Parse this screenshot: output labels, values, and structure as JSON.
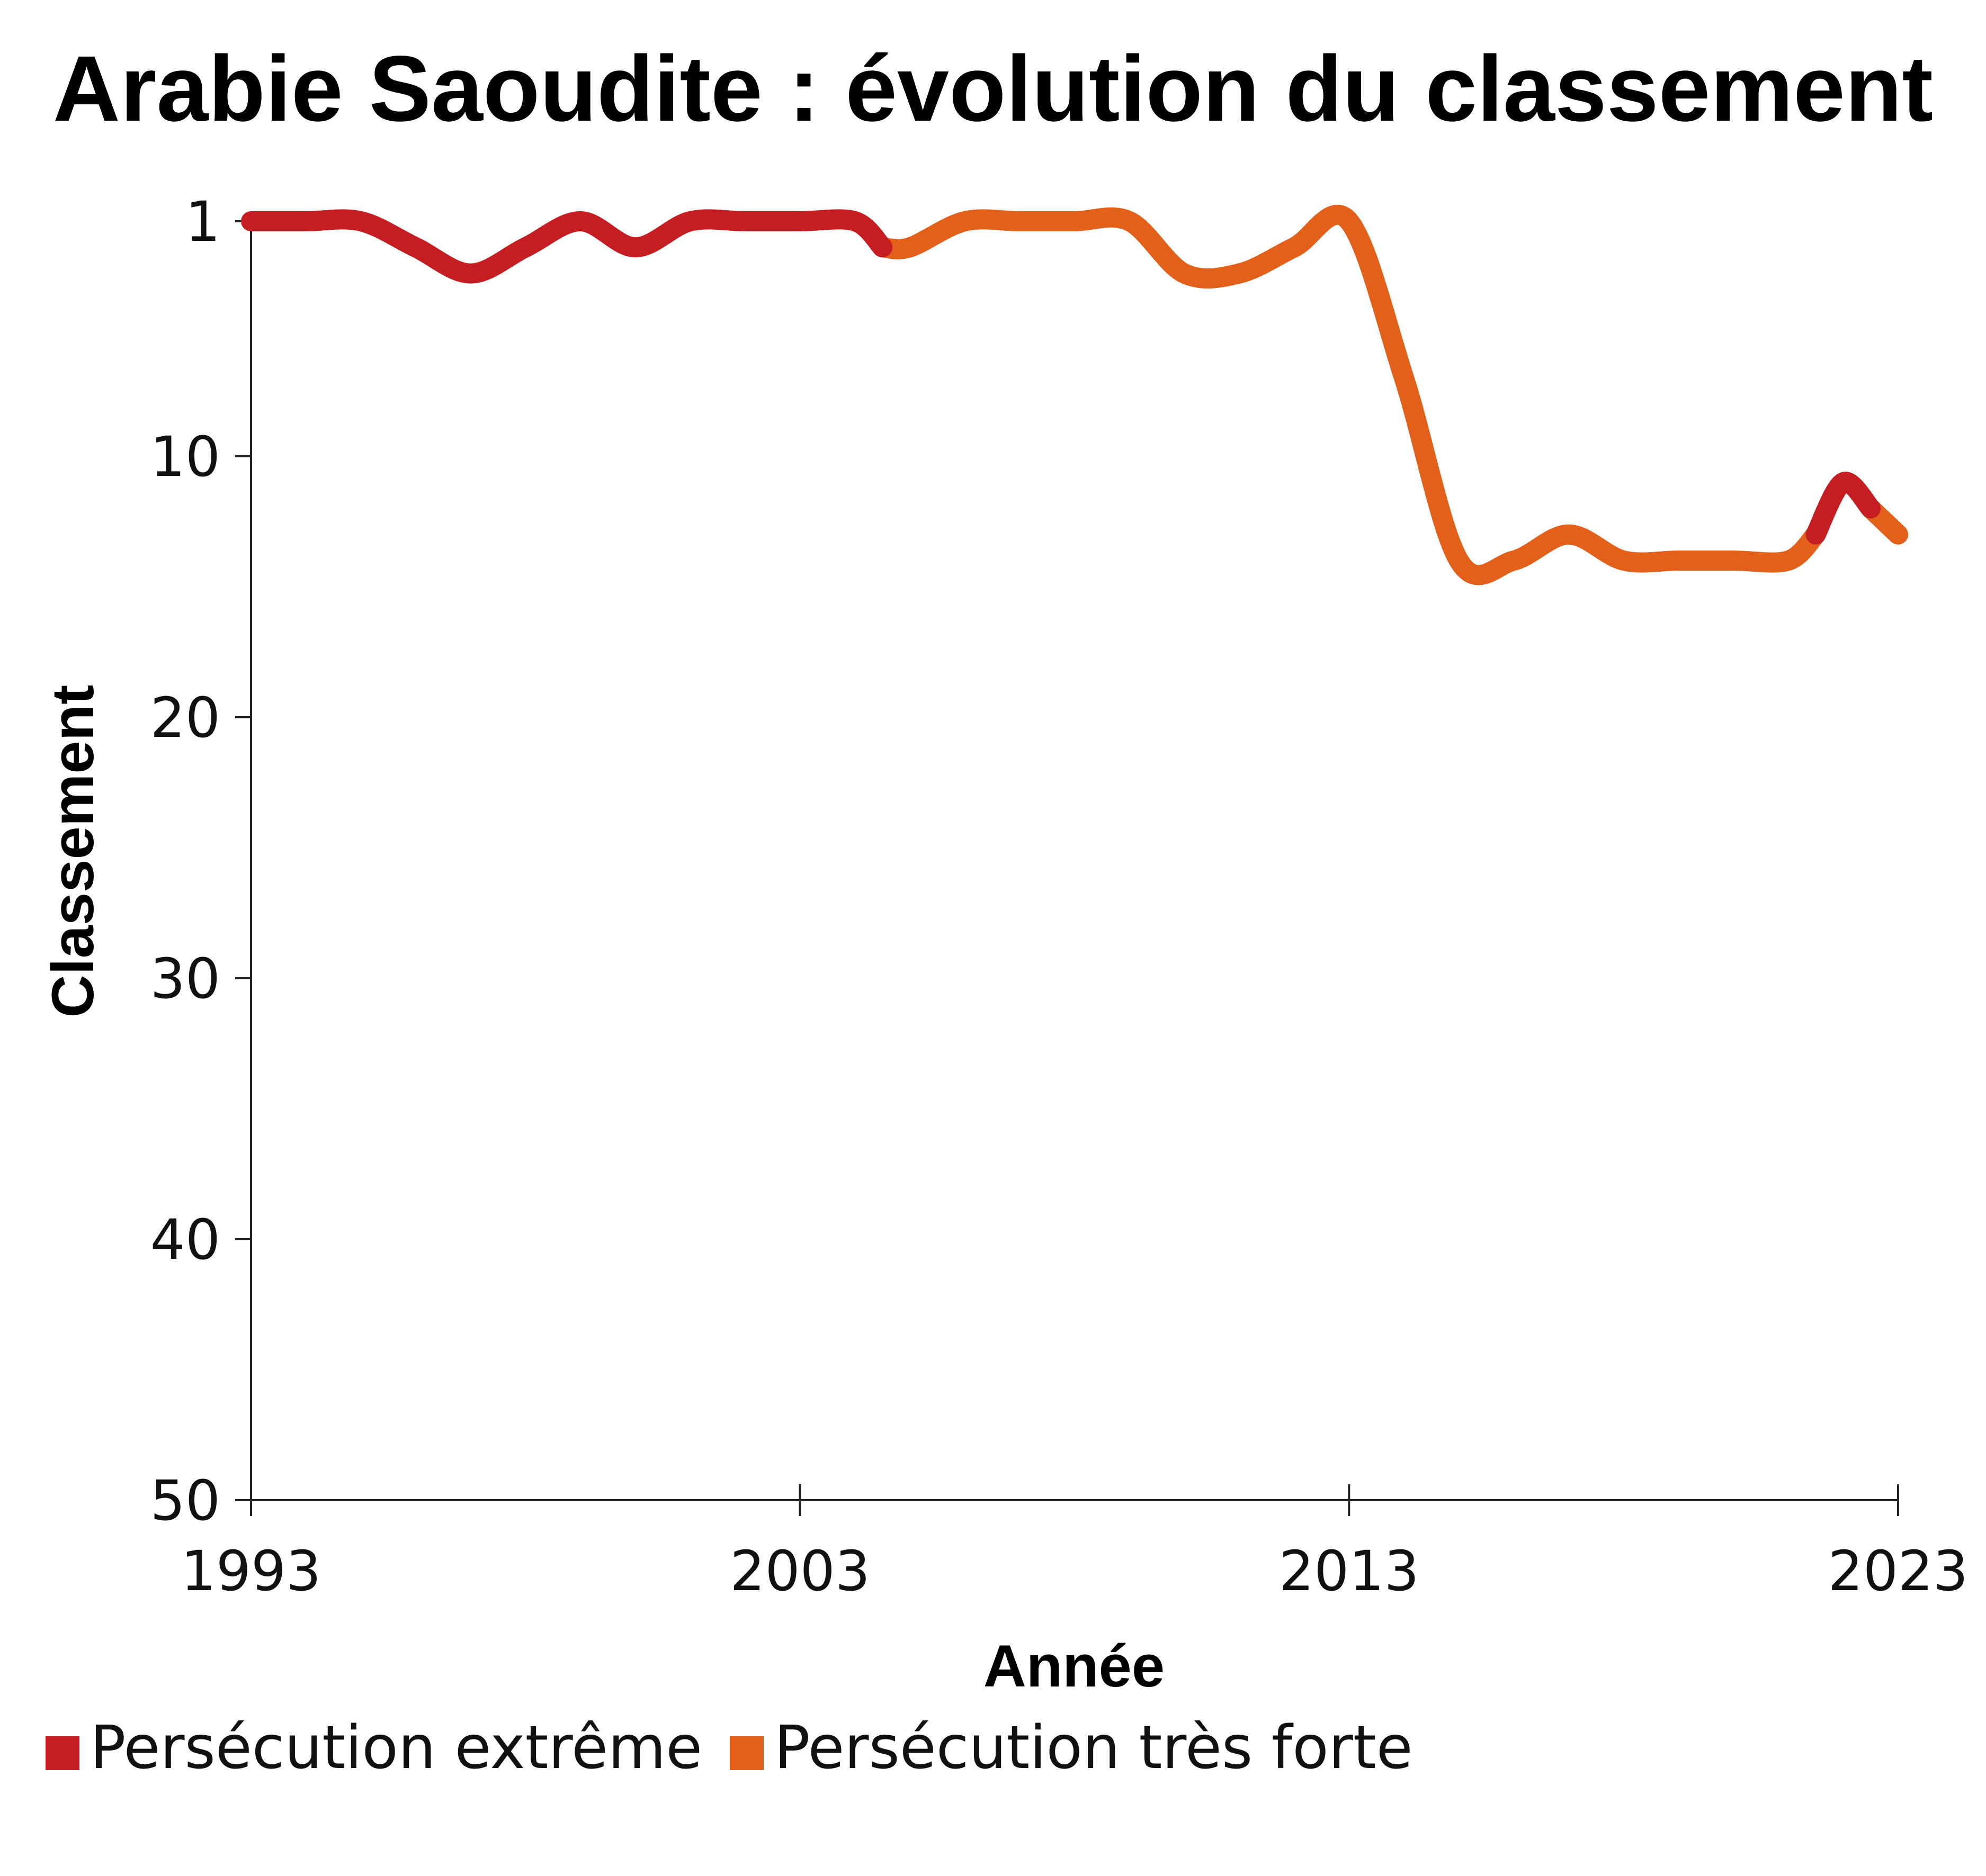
{
  "chart_data": {
    "type": "line",
    "title": "Arabie Saoudite : évolution du classement",
    "xlabel": "Année",
    "ylabel": "Classement",
    "xlim": [
      1993,
      2023
    ],
    "ylim": [
      1,
      50
    ],
    "y_inverted": true,
    "x_ticks": [
      "1993",
      "2003",
      "2013",
      "2023"
    ],
    "y_ticks": [
      "1",
      "10",
      "20",
      "30",
      "40",
      "50"
    ],
    "grid": false,
    "legend_position": "bottom",
    "colors": {
      "extreme": "#c41e22",
      "tres_forte": "#e2601a"
    },
    "series": [
      {
        "name": "Persécution extrême",
        "color": "#c41e22",
        "segments": [
          {
            "x": [
              1993,
              1994,
              1995,
              1996,
              1997,
              1998,
              1999,
              2000,
              2001,
              2002,
              2003,
              2004,
              2004.5
            ],
            "y": [
              1,
              1,
              1,
              2,
              3,
              2,
              1,
              2,
              1,
              1,
              1,
              1,
              2
            ]
          },
          {
            "x": [
              2021.5,
              2022,
              2022.5
            ],
            "y": [
              13,
              11,
              12
            ]
          }
        ]
      },
      {
        "name": "Persécution très forte",
        "color": "#e2601a",
        "segments": [
          {
            "x": [
              2004.5,
              2005,
              2006,
              2007,
              2008,
              2009,
              2010,
              2011,
              2012,
              2013,
              2014,
              2015,
              2016,
              2017,
              2018,
              2019,
              2020,
              2021,
              2021.5
            ],
            "y": [
              2,
              2,
              1,
              1,
              1,
              1,
              3,
              3,
              2,
              1,
              7,
              14,
              14,
              13,
              14,
              14,
              14,
              14,
              13
            ]
          },
          {
            "x": [
              2022.5,
              2023
            ],
            "y": [
              12,
              13
            ]
          }
        ]
      }
    ]
  }
}
